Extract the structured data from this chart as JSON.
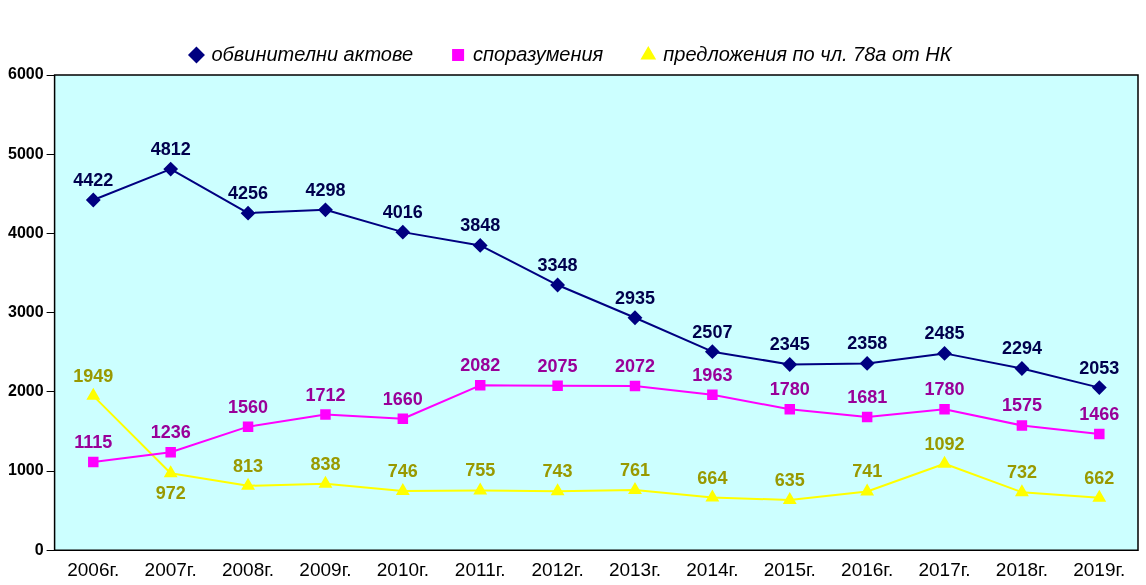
{
  "chart_data": {
    "type": "line",
    "categories": [
      "2006г.",
      "2007г.",
      "2008г.",
      "2009г.",
      "2010г.",
      "2011г.",
      "2012г.",
      "2013г.",
      "2014г.",
      "2015г.",
      "2016г.",
      "2017г.",
      "2018г.",
      "2019г."
    ],
    "series": [
      {
        "name": "обвинителни актове",
        "color": "#000080",
        "marker": "diamond",
        "values": [
          4422,
          4812,
          4256,
          4298,
          4016,
          3848,
          3348,
          2935,
          2507,
          2345,
          2358,
          2485,
          2294,
          2053
        ]
      },
      {
        "name": "споразумения",
        "color": "#ff00ff",
        "marker": "square",
        "values": [
          1115,
          1236,
          1560,
          1712,
          1660,
          2082,
          2075,
          2072,
          1963,
          1780,
          1681,
          1780,
          1575,
          1466
        ]
      },
      {
        "name": "предложения по чл. 78а от НК",
        "color": "#ffff00",
        "marker": "triangle",
        "values": [
          1949,
          972,
          813,
          838,
          746,
          755,
          743,
          761,
          664,
          635,
          741,
          1092,
          732,
          662
        ]
      }
    ],
    "ylim": [
      0,
      6000
    ],
    "yticks": [
      0,
      1000,
      2000,
      3000,
      4000,
      5000,
      6000
    ],
    "grid": false,
    "legend": "top",
    "data_labels": true,
    "line_style": "solid"
  }
}
